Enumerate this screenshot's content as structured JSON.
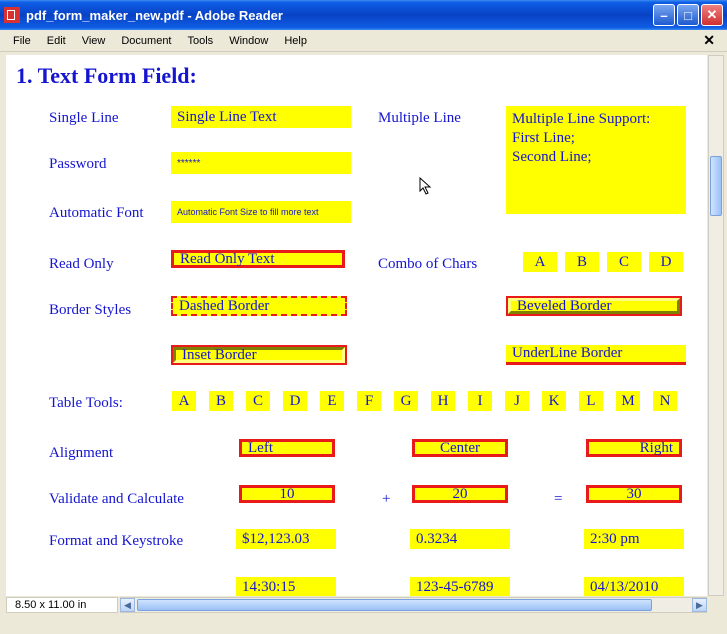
{
  "window": {
    "title": "pdf_form_maker_new.pdf - Adobe Reader",
    "menu": [
      "File",
      "Edit",
      "View",
      "Document",
      "Tools",
      "Window",
      "Help"
    ]
  },
  "heading": "1. Text Form Field:",
  "labels": {
    "single": "Single Line",
    "multiple": "Multiple Line",
    "password": "Password",
    "autofont": "Automatic Font",
    "readonly": "Read Only",
    "combo": "Combo of Chars",
    "borderstyles": "Border Styles",
    "tabletools": "Table Tools:",
    "alignment": "Alignment",
    "validate": "Validate and Calculate",
    "format": "Format and Keystroke"
  },
  "fields": {
    "single": "Single Line Text",
    "multi_line1": "Multiple Line Support:",
    "multi_line2": "First Line;",
    "multi_line3": "Second Line;",
    "password": "******",
    "autofont": "Automatic Font Size to fill more text",
    "readonly": "Read Only Text",
    "combo": [
      "A",
      "B",
      "C",
      "D"
    ],
    "dashed": "Dashed Border",
    "beveled": "Beveled Border",
    "inset": "Inset Border",
    "underline": "UnderLine Border",
    "tableletters": [
      "A",
      "B",
      "C",
      "D",
      "E",
      "F",
      "G",
      "H",
      "I",
      "J",
      "K",
      "L",
      "M",
      "N"
    ],
    "align_left": "Left",
    "align_center": "Center",
    "align_right": "Right",
    "calc_a": "10",
    "plus": "+",
    "calc_b": "20",
    "eq": "=",
    "calc_c": "30",
    "fmt1": "$12,123.03",
    "fmt2": "0.3234",
    "fmt3": "2:30 pm",
    "fmt4": "14:30:15",
    "fmt5": "123-45-6789",
    "fmt6": "04/13/2010"
  },
  "status": {
    "pagesize": "8.50 x 11.00 in"
  },
  "colors": {
    "yellow": "#ffff00",
    "red": "#e81a1a",
    "blue": "#1515d0",
    "xp_title": "#0842c5"
  }
}
